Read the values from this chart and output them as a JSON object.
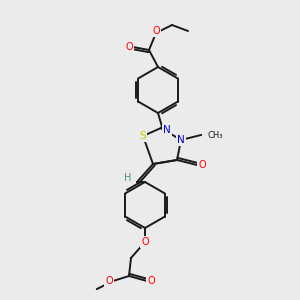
{
  "bg_color": "#ebebeb",
  "bond_color": "#1a1a1a",
  "atom_colors": {
    "O": "#ff0000",
    "N": "#0000cc",
    "S": "#cccc00",
    "H": "#4a9090",
    "C": "#1a1a1a"
  },
  "figsize": [
    3.0,
    3.0
  ],
  "dpi": 100
}
